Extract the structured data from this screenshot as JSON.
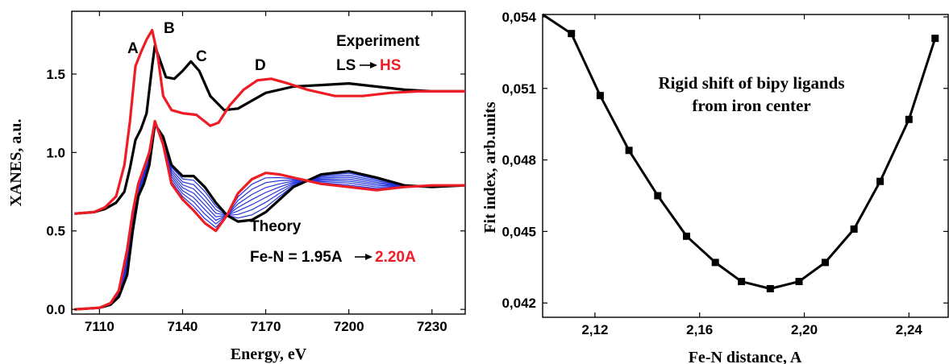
{
  "chart_data": [
    {
      "type": "line",
      "xlabel": "Energy, eV",
      "ylabel": "XANES, a.u.",
      "xlim": [
        7100,
        7242
      ],
      "ylim": [
        -0.03,
        1.9
      ],
      "xticks": [
        7110,
        7140,
        7170,
        7200,
        7230
      ],
      "xtick_labels": [
        "7110",
        "7140",
        "7170",
        "7200",
        "7230"
      ],
      "yticks": [
        0.0,
        0.5,
        1.0,
        1.5
      ],
      "ytick_labels": [
        "0.0",
        "0.5",
        "1.0",
        "1.5"
      ],
      "grid": false,
      "annotations": {
        "peak_a": "A",
        "peak_b": "B",
        "peak_c": "C",
        "peak_d": "D",
        "experiment": "Experiment",
        "ls": "LS",
        "hs": "HS",
        "theory": "Theory",
        "fen_prefix": "Fe-N = 1.95A",
        "fen_suffix": "2.20A"
      },
      "series": [
        {
          "color": "#000000",
          "x": [
            7101,
            7108,
            7112,
            7116,
            7119,
            7121,
            7123,
            7125,
            7127,
            7129,
            7130,
            7132,
            7134,
            7137,
            7140,
            7143,
            7146,
            7150,
            7155,
            7160,
            7165,
            7170,
            7180,
            7190,
            7200,
            7210,
            7220,
            7230,
            7242
          ],
          "y": [
            0.61,
            0.62,
            0.64,
            0.68,
            0.75,
            0.9,
            1.08,
            1.15,
            1.25,
            1.55,
            1.68,
            1.58,
            1.48,
            1.47,
            1.52,
            1.58,
            1.52,
            1.36,
            1.27,
            1.28,
            1.33,
            1.38,
            1.42,
            1.43,
            1.44,
            1.42,
            1.4,
            1.39,
            1.39
          ]
        },
        {
          "color": "#ee1c24",
          "x": [
            7101,
            7108,
            7112,
            7116,
            7119,
            7121,
            7123,
            7125,
            7127,
            7129,
            7131,
            7133,
            7136,
            7140,
            7145,
            7150,
            7153,
            7157,
            7162,
            7167,
            7172,
            7178,
            7185,
            7195,
            7205,
            7215,
            7225,
            7242
          ],
          "y": [
            0.61,
            0.62,
            0.65,
            0.72,
            0.92,
            1.2,
            1.55,
            1.64,
            1.72,
            1.78,
            1.62,
            1.36,
            1.27,
            1.25,
            1.24,
            1.17,
            1.19,
            1.3,
            1.4,
            1.46,
            1.47,
            1.44,
            1.4,
            1.36,
            1.36,
            1.38,
            1.39,
            1.39
          ]
        },
        {
          "color": "#000000",
          "x": [
            7101,
            7110,
            7114,
            7117,
            7120,
            7122,
            7124,
            7126,
            7128,
            7130,
            7133,
            7136,
            7140,
            7144,
            7148,
            7152,
            7156,
            7160,
            7165,
            7170,
            7175,
            7180,
            7190,
            7200,
            7210,
            7220,
            7230,
            7242
          ],
          "y": [
            0.0,
            0.01,
            0.03,
            0.08,
            0.22,
            0.5,
            0.72,
            0.8,
            0.92,
            1.18,
            1.1,
            0.92,
            0.85,
            0.85,
            0.78,
            0.68,
            0.6,
            0.56,
            0.57,
            0.62,
            0.7,
            0.78,
            0.86,
            0.88,
            0.84,
            0.79,
            0.78,
            0.79
          ]
        },
        {
          "color": "#ee1c24",
          "x": [
            7101,
            7110,
            7114,
            7117,
            7120,
            7122,
            7124,
            7126,
            7128,
            7130,
            7133,
            7136,
            7140,
            7144,
            7148,
            7152,
            7156,
            7160,
            7165,
            7170,
            7175,
            7180,
            7190,
            7200,
            7210,
            7220,
            7230,
            7242
          ],
          "y": [
            0.0,
            0.01,
            0.04,
            0.12,
            0.38,
            0.62,
            0.8,
            0.9,
            1.0,
            1.2,
            1.05,
            0.8,
            0.7,
            0.63,
            0.55,
            0.5,
            0.6,
            0.74,
            0.83,
            0.87,
            0.86,
            0.84,
            0.8,
            0.78,
            0.76,
            0.78,
            0.79,
            0.79
          ]
        }
      ]
    },
    {
      "type": "line",
      "title": "Rigid shift of bipy ligands",
      "subtitle": "from iron center",
      "xlabel": "Fe-N distance, A",
      "ylabel": "Fit index, arb.units",
      "xlim": [
        2.1,
        2.255
      ],
      "ylim": [
        0.0414,
        0.0541
      ],
      "xticks": [
        2.12,
        2.16,
        2.2,
        2.24
      ],
      "xtick_labels": [
        "2,12",
        "2,16",
        "2,20",
        "2,24"
      ],
      "yticks": [
        0.042,
        0.045,
        0.048,
        0.051,
        0.054
      ],
      "ytick_labels": [
        "0,042",
        "0,045",
        "0,048",
        "0,051",
        "0,054"
      ],
      "grid": false,
      "series": [
        {
          "color": "#000000",
          "marker": "square",
          "x": [
            2.111,
            2.122,
            2.133,
            2.144,
            2.155,
            2.166,
            2.176,
            2.187,
            2.198,
            2.208,
            2.219,
            2.229,
            2.24,
            2.25
          ],
          "y": [
            0.0533,
            0.0507,
            0.0484,
            0.0465,
            0.0448,
            0.0437,
            0.0429,
            0.0426,
            0.0429,
            0.0437,
            0.0451,
            0.0471,
            0.0497,
            0.0531
          ]
        }
      ]
    }
  ]
}
